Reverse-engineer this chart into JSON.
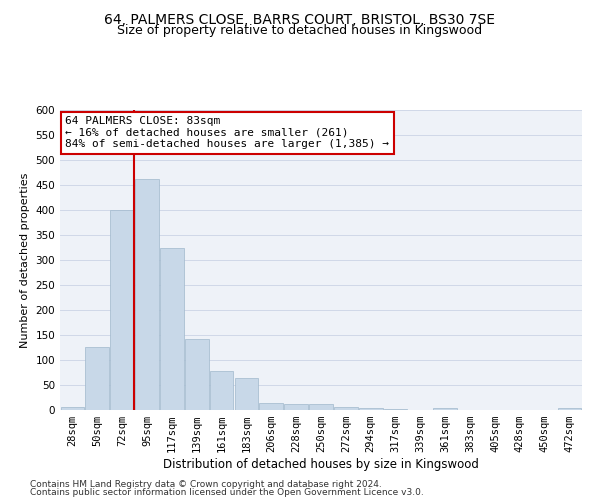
{
  "title1": "64, PALMERS CLOSE, BARRS COURT, BRISTOL, BS30 7SE",
  "title2": "Size of property relative to detached houses in Kingswood",
  "xlabel": "Distribution of detached houses by size in Kingswood",
  "ylabel": "Number of detached properties",
  "categories": [
    "28sqm",
    "50sqm",
    "72sqm",
    "95sqm",
    "117sqm",
    "139sqm",
    "161sqm",
    "183sqm",
    "206sqm",
    "228sqm",
    "250sqm",
    "272sqm",
    "294sqm",
    "317sqm",
    "339sqm",
    "361sqm",
    "383sqm",
    "405sqm",
    "428sqm",
    "450sqm",
    "472sqm"
  ],
  "values": [
    7,
    127,
    400,
    462,
    325,
    143,
    78,
    65,
    15,
    12,
    13,
    6,
    5,
    3,
    1,
    4,
    0,
    0,
    0,
    0,
    4
  ],
  "bar_color": "#c8d8e8",
  "bar_edge_color": "#a0b8cc",
  "grid_color": "#d0d8e8",
  "vline_x_index": 2,
  "vline_color": "#cc0000",
  "annotation_text": "64 PALMERS CLOSE: 83sqm\n← 16% of detached houses are smaller (261)\n84% of semi-detached houses are larger (1,385) →",
  "annotation_box_color": "#ffffff",
  "annotation_box_edge": "#cc0000",
  "footnote1": "Contains HM Land Registry data © Crown copyright and database right 2024.",
  "footnote2": "Contains public sector information licensed under the Open Government Licence v3.0.",
  "ylim": [
    0,
    600
  ],
  "yticks": [
    0,
    50,
    100,
    150,
    200,
    250,
    300,
    350,
    400,
    450,
    500,
    550,
    600
  ],
  "title1_fontsize": 10,
  "title2_fontsize": 9,
  "xlabel_fontsize": 8.5,
  "ylabel_fontsize": 8,
  "tick_fontsize": 7.5,
  "annotation_fontsize": 8,
  "footnote_fontsize": 6.5
}
